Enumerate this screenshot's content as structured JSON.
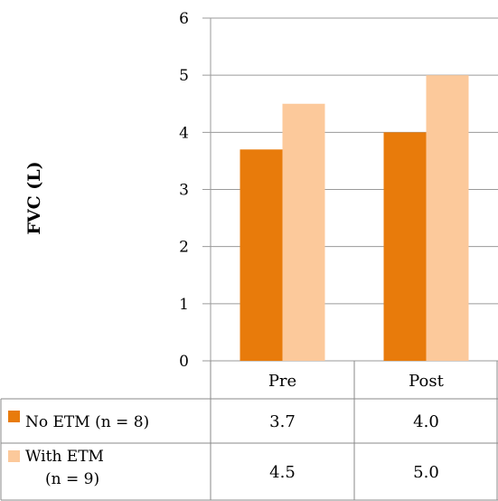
{
  "chart_data": {
    "type": "bar",
    "ylabel": "FVC (L)",
    "ylim": [
      0,
      6
    ],
    "y_ticks": [
      "0",
      "1",
      "2",
      "3",
      "4",
      "5",
      "6"
    ],
    "categories": [
      "Pre",
      "Post"
    ],
    "grid": true,
    "legend_placement": "data-table-left",
    "series": [
      {
        "name": "No ETM (n = 8)",
        "color": "#e87b0b",
        "values": [
          3.7,
          4.0
        ],
        "labels": [
          "3.7",
          "4.0"
        ]
      },
      {
        "name_lines": [
          "With ETM",
          "(n = 9)"
        ],
        "color": "#fcc99b",
        "values": [
          4.5,
          5.0
        ],
        "labels": [
          "4.5",
          "5.0"
        ]
      }
    ]
  }
}
